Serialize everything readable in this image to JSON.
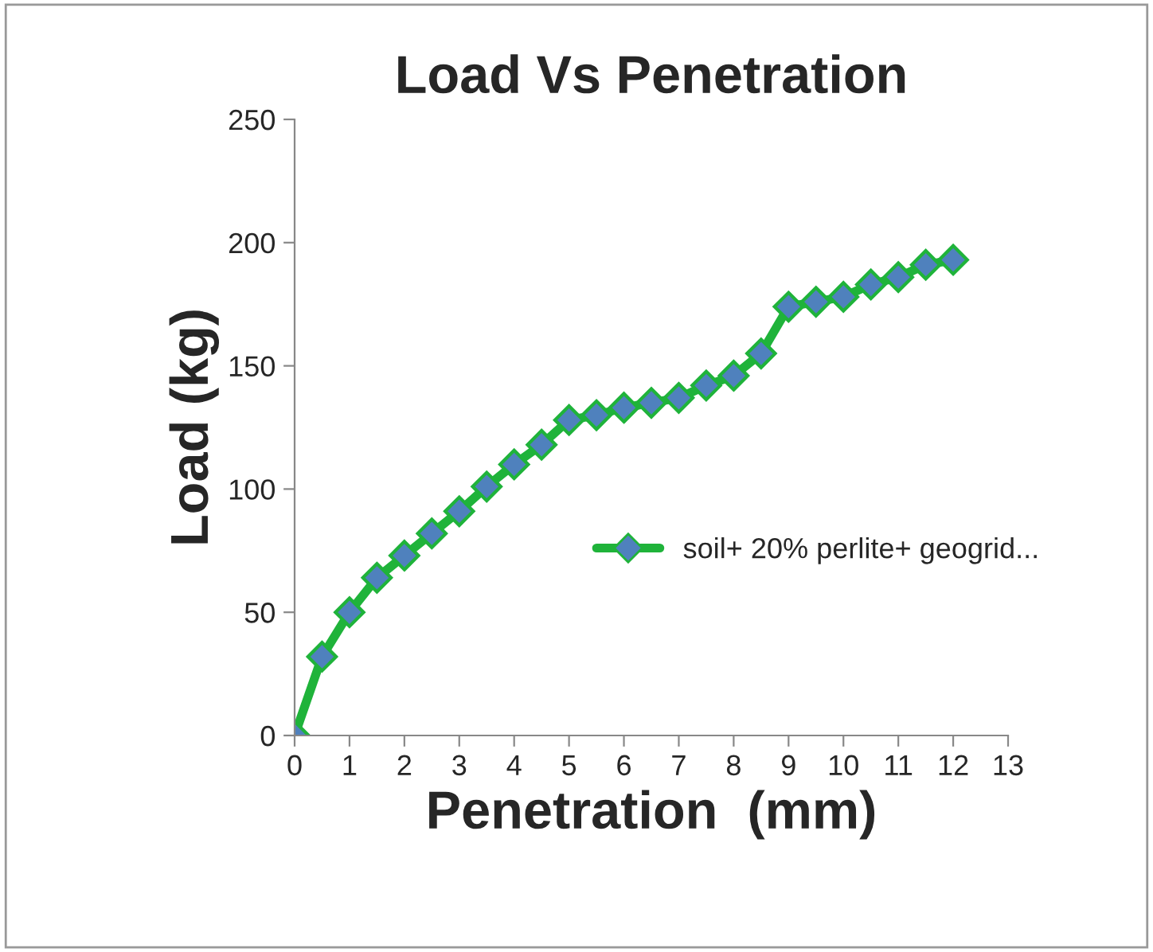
{
  "chart_data": {
    "type": "line",
    "title": "Load Vs Penetration",
    "xlabel": "Penetration  (mm)",
    "ylabel": "Load (kg)",
    "x": [
      0,
      0.5,
      1,
      1.5,
      2,
      2.5,
      3,
      3.5,
      4,
      4.5,
      5,
      5.5,
      6,
      6.5,
      7,
      7.5,
      8,
      8.5,
      9,
      9.5,
      10,
      10.5,
      11,
      11.5,
      12
    ],
    "series": [
      {
        "name": "soil+ 20% perlite+ geogrid...",
        "color": "#1fb33a",
        "values": [
          0,
          32,
          50,
          64,
          73,
          82,
          91,
          101,
          110,
          118,
          128,
          130,
          133,
          135,
          137,
          142,
          146,
          155,
          174,
          176,
          178,
          183,
          186,
          191,
          193
        ]
      }
    ],
    "xlim": [
      0,
      13
    ],
    "xticks": [
      0,
      1,
      2,
      3,
      4,
      5,
      6,
      7,
      8,
      9,
      10,
      11,
      12,
      13
    ],
    "ylim": [
      0,
      250
    ],
    "yticks": [
      0,
      50,
      100,
      150,
      200,
      250
    ],
    "marker": "diamond",
    "line_style": "solid",
    "grid": false,
    "legend": "right"
  }
}
